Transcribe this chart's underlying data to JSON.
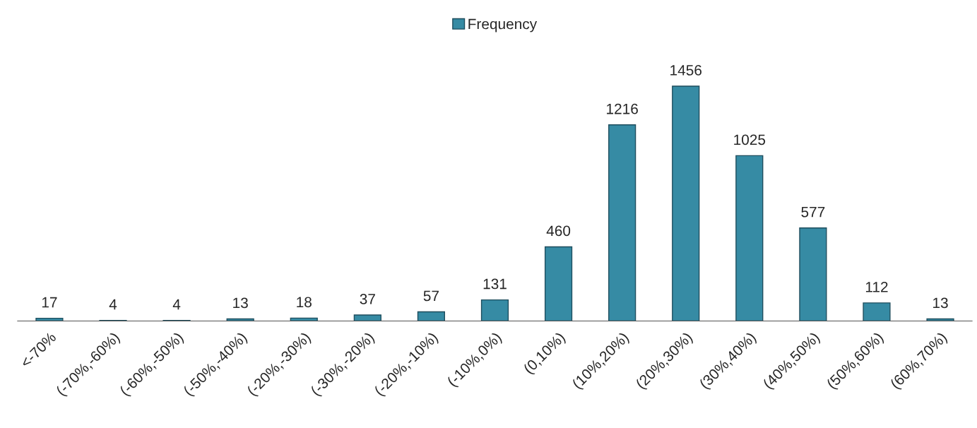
{
  "chart_data": {
    "type": "bar",
    "categories": [
      "<-70%",
      "(-70%,-60%)",
      "(-60%,-50%)",
      "(-50%,-40%)",
      "(-20%,-30%)",
      "(-30%,-20%)",
      "(-20%,-10%)",
      "(-10%,0%)",
      "(0,10%)",
      "(10%,20%)",
      "(20%,30%)",
      "(30%,40%)",
      "(40%,50%)",
      "(50%,60%)",
      "(60%,70%)"
    ],
    "series": [
      {
        "name": "Frequency",
        "color": "#368ba4",
        "values": [
          17,
          4,
          4,
          13,
          18,
          37,
          57,
          131,
          460,
          1216,
          1456,
          1025,
          577,
          112,
          13
        ]
      }
    ],
    "data_labels": true,
    "legend": "top",
    "tick_labels": "x",
    "grid": false
  }
}
